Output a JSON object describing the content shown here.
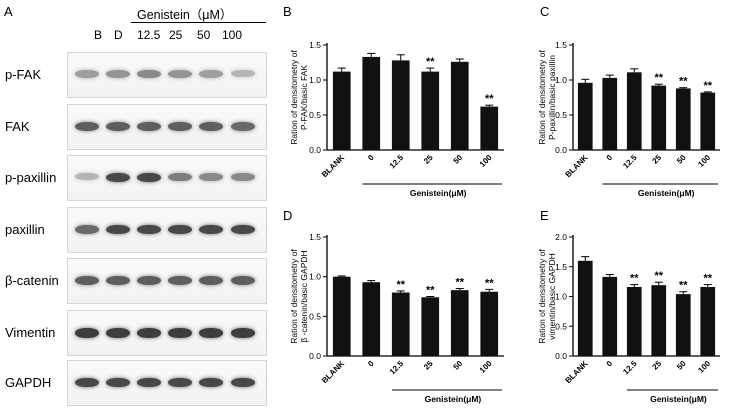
{
  "panel_letters": {
    "A": "A",
    "B": "B",
    "C": "C",
    "D": "D",
    "E": "E"
  },
  "blot": {
    "treatment_title": "Genistein（μM）",
    "columns": [
      "B",
      "D",
      "12.5",
      "25",
      "50",
      "100"
    ],
    "rows": [
      {
        "label": "p-FAK",
        "intensities": [
          0.45,
          0.5,
          0.55,
          0.5,
          0.45,
          0.35
        ]
      },
      {
        "label": "FAK",
        "intensities": [
          0.75,
          0.75,
          0.75,
          0.75,
          0.75,
          0.7
        ]
      },
      {
        "label": "p-paxillin",
        "intensities": [
          0.35,
          0.85,
          0.85,
          0.6,
          0.55,
          0.55
        ]
      },
      {
        "label": "paxillin",
        "intensities": [
          0.7,
          0.85,
          0.85,
          0.85,
          0.85,
          0.85
        ]
      },
      {
        "label": "β-catenin",
        "intensities": [
          0.75,
          0.75,
          0.75,
          0.75,
          0.75,
          0.75
        ]
      },
      {
        "label": "Vimentin",
        "intensities": [
          0.9,
          0.9,
          0.9,
          0.9,
          0.9,
          0.9
        ]
      },
      {
        "label": "GAPDH",
        "intensities": [
          0.85,
          0.85,
          0.85,
          0.85,
          0.85,
          0.85
        ]
      }
    ]
  },
  "chart_data": [
    {
      "id": "B",
      "type": "bar",
      "categories": [
        "BLANK",
        "0",
        "12.5",
        "25",
        "50",
        "100"
      ],
      "values": [
        1.12,
        1.33,
        1.28,
        1.12,
        1.26,
        0.62
      ],
      "errors": [
        0.05,
        0.05,
        0.08,
        0.05,
        0.04,
        0.02
      ],
      "significance": [
        "",
        "",
        "",
        "**",
        "",
        "**"
      ],
      "ylabel": "Ration of densitometry of\nP-FAK/basic FAK",
      "xlabel": "Genistein(μM)",
      "ylim": [
        0,
        1.5
      ],
      "yticks": [
        "0.0",
        "0.5",
        "1.0",
        "1.5"
      ],
      "bracket_from": 1
    },
    {
      "id": "C",
      "type": "bar",
      "categories": [
        "BLANK",
        "0",
        "12.5",
        "25",
        "50",
        "100"
      ],
      "values": [
        0.96,
        1.03,
        1.11,
        0.92,
        0.88,
        0.82
      ],
      "errors": [
        0.05,
        0.04,
        0.05,
        0.02,
        0.01,
        0.01
      ],
      "significance": [
        "",
        "",
        "",
        "**",
        "**",
        "**"
      ],
      "ylabel": "Ration of densitometry of\nP-paxillin/basic paxillin",
      "xlabel": "Genistein(μM)",
      "ylim": [
        0,
        1.5
      ],
      "yticks": [
        "0.0",
        "0.5",
        "1.0",
        "1.5"
      ],
      "bracket_from": 1
    },
    {
      "id": "D",
      "type": "bar",
      "categories": [
        "BLANK",
        "0",
        "12.5",
        "25",
        "50",
        "100"
      ],
      "values": [
        1.0,
        0.93,
        0.8,
        0.74,
        0.83,
        0.81
      ],
      "errors": [
        0.01,
        0.02,
        0.02,
        0.01,
        0.02,
        0.03
      ],
      "significance": [
        "",
        "",
        "**",
        "**",
        "**",
        "**"
      ],
      "ylabel": "Ration of densitometry of\nβ -catenin/basic GAPDH",
      "xlabel": "Genistein(μM)",
      "ylim": [
        0,
        1.5
      ],
      "yticks": [
        "0.0",
        "0.5",
        "1.0",
        "1.5"
      ],
      "bracket_from": 2
    },
    {
      "id": "E",
      "type": "bar",
      "categories": [
        "BLANK",
        "0",
        "12.5",
        "25",
        "50",
        "100"
      ],
      "values": [
        1.6,
        1.33,
        1.16,
        1.19,
        1.04,
        1.16
      ],
      "errors": [
        0.07,
        0.04,
        0.04,
        0.05,
        0.04,
        0.04
      ],
      "significance": [
        "",
        "",
        "**",
        "**",
        "**",
        "**"
      ],
      "ylabel": "Ration of densitometry of\nvimentin/basic GAPDH",
      "xlabel": "Genistein(μM)",
      "ylim": [
        0,
        2.0
      ],
      "yticks": [
        "0.0",
        "0.5",
        "1.0",
        "1.5",
        "2.0"
      ],
      "bracket_from": 2
    }
  ]
}
